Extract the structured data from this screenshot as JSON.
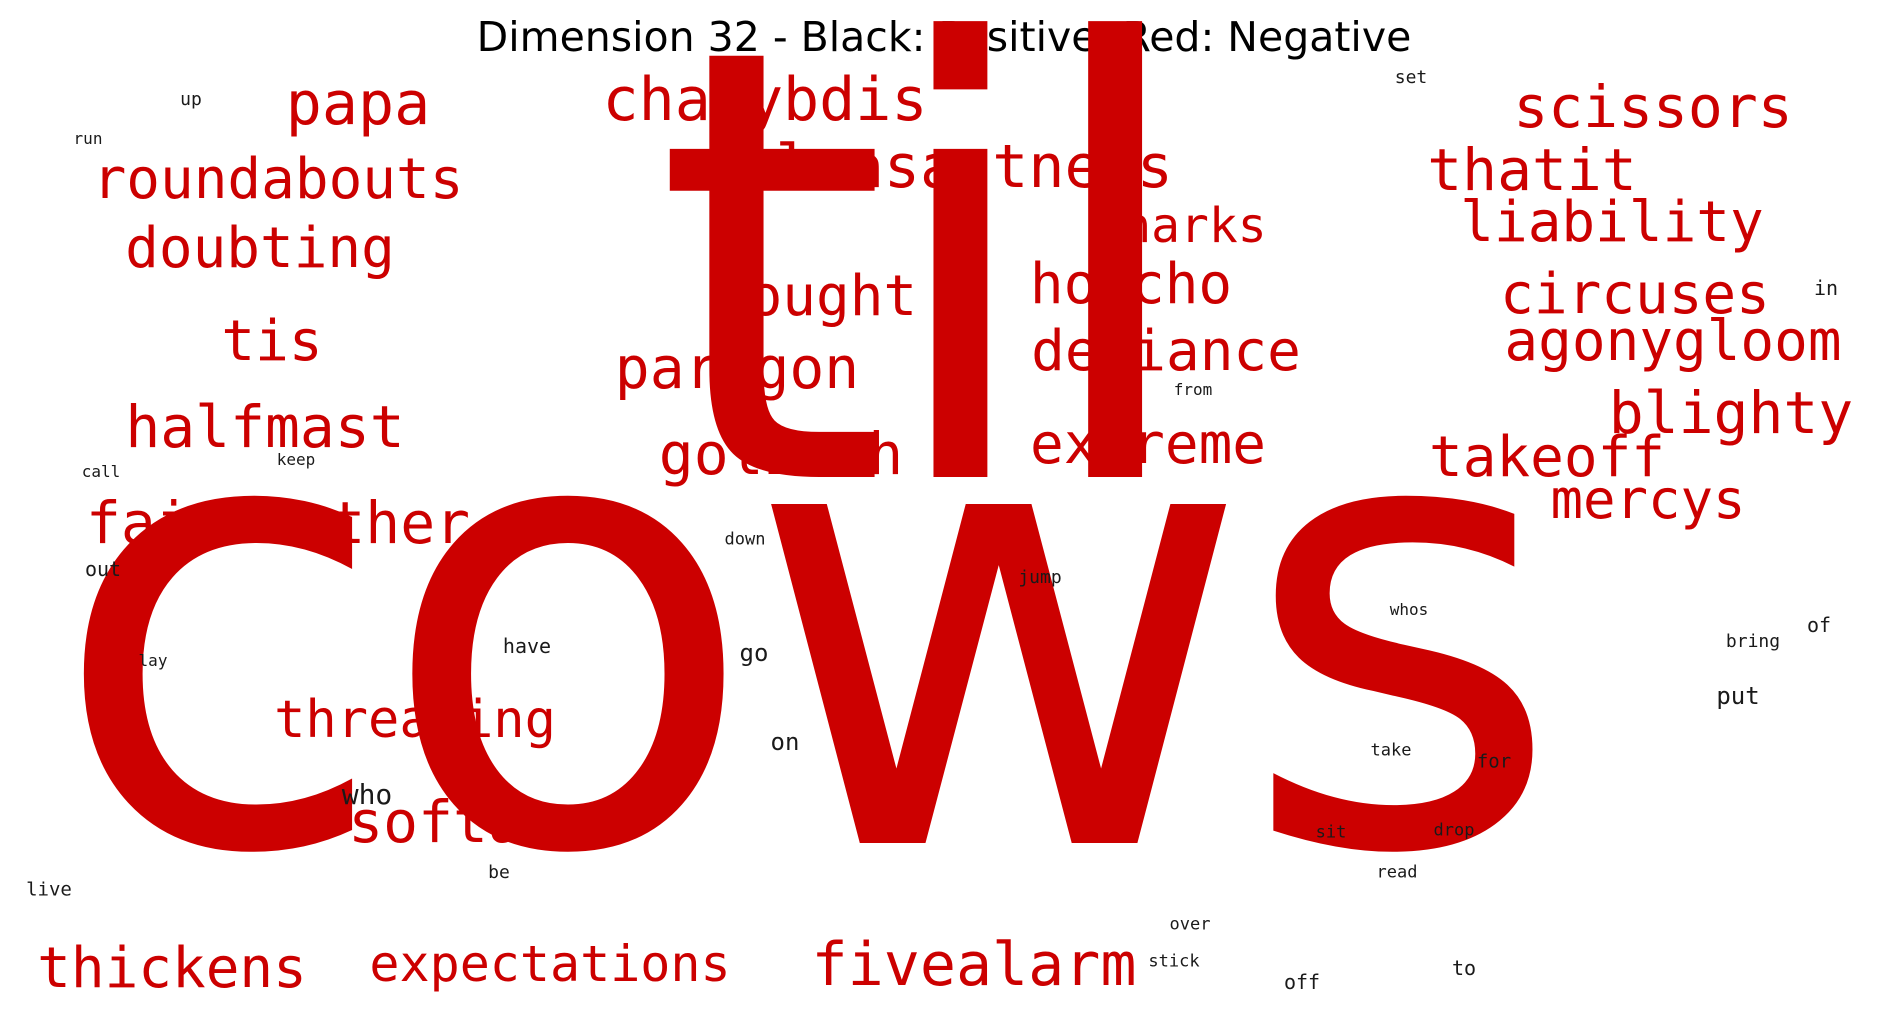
{
  "title": "Dimension 32 - Black: Positive, Red: Negative",
  "colors": {
    "positive": "#1a1a1a",
    "negative": "#cc0000"
  },
  "negative_words": [
    "cows",
    "til",
    "charybdis",
    "unpleasantness",
    "scissors",
    "papa",
    "roundabouts",
    "thatit",
    "liability",
    "doubting",
    "sharks",
    "honcho",
    "nought",
    "circuses",
    "agonygloom",
    "tis",
    "defiance",
    "paragon",
    "blighty",
    "halfmast",
    "goliath",
    "extreme",
    "takeoff",
    "fairweather",
    "mercys",
    "threading",
    "softan",
    "expectations",
    "fivealarm",
    "thickens"
  ],
  "positive_words": [
    "set",
    "up",
    "run",
    "in",
    "from",
    "call",
    "keep",
    "down",
    "out",
    "jump",
    "whos",
    "of",
    "bring",
    "have",
    "lay",
    "go",
    "put",
    "on",
    "take",
    "for",
    "who",
    "sit",
    "drop",
    "live",
    "be",
    "read",
    "over",
    "stick",
    "off",
    "to"
  ]
}
